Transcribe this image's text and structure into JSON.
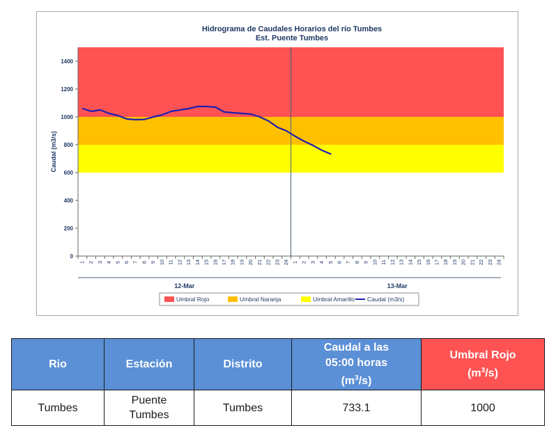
{
  "chart_data": {
    "type": "line",
    "title": "Hidrograma de Caudales Horarios del río Tumbes",
    "subtitle": "Est. Puente Tumbes",
    "ylabel": "Caudal  (m3/s)",
    "ylim": [
      0,
      1500
    ],
    "yticks": [
      0,
      200,
      400,
      600,
      800,
      1000,
      1200,
      1400
    ],
    "x_tick_labels": [
      "1",
      "2",
      "3",
      "4",
      "5",
      "6",
      "7",
      "8",
      "9",
      "10",
      "11",
      "12",
      "13",
      "14",
      "15",
      "16",
      "17",
      "18",
      "19",
      "20",
      "21",
      "22",
      "23",
      "24",
      "1",
      "2",
      "3",
      "4",
      "5",
      "6",
      "7",
      "8",
      "9",
      "10",
      "11",
      "12",
      "13",
      "14",
      "15",
      "16",
      "17",
      "18",
      "19",
      "20",
      "21",
      "22",
      "23",
      "24"
    ],
    "day_labels": [
      "12-Mar",
      "13-Mar"
    ],
    "bands": [
      {
        "name": "Umbral Rojo",
        "from": 1000,
        "to": 1500,
        "color": "#ff5353"
      },
      {
        "name": "Umbral Naranja",
        "from": 800,
        "to": 1000,
        "color": "#ffc000"
      },
      {
        "name": "Umbral Amarillo",
        "from": 600,
        "to": 800,
        "color": "#ffff00"
      }
    ],
    "series": [
      {
        "name": "Caudal (m3/s)",
        "color": "#1f1fb0",
        "x": [
          0,
          1,
          2,
          3,
          4,
          5,
          6,
          7,
          8,
          9,
          10,
          11,
          12,
          13,
          14,
          15,
          16,
          17,
          18,
          19,
          20,
          21,
          22,
          23,
          24,
          25,
          26,
          27,
          28
        ],
        "values": [
          1060,
          1040,
          1050,
          1025,
          1010,
          985,
          980,
          982,
          1000,
          1015,
          1040,
          1050,
          1060,
          1075,
          1075,
          1070,
          1035,
          1030,
          1025,
          1020,
          1000,
          970,
          925,
          900,
          860,
          825,
          795,
          760,
          733.1
        ]
      }
    ],
    "legend": [
      "Umbral Rojo",
      "Umbral Naranja",
      "Umbral Amarillo",
      "Caudal (m3/s)"
    ],
    "legend_position": "bottom",
    "grid": false
  },
  "table": {
    "headers": {
      "rio": "Rio",
      "estacion": "Estación",
      "distrito": "Distrito",
      "caudal_line1": "Caudal a las",
      "caudal_line2": "05:00 horas",
      "caudal_unit": "(m",
      "caudal_sup": "3",
      "caudal_unit_end": "/s)",
      "umbral_line1": "Umbral Rojo",
      "umbral_unit": "(m",
      "umbral_sup": "3",
      "umbral_unit_end": "/s)"
    },
    "row": {
      "rio": "Tumbes",
      "estacion_line1": "Puente",
      "estacion_line2": "Tumbes",
      "distrito": "Tumbes",
      "caudal": "733.1",
      "umbral": "1000"
    }
  }
}
